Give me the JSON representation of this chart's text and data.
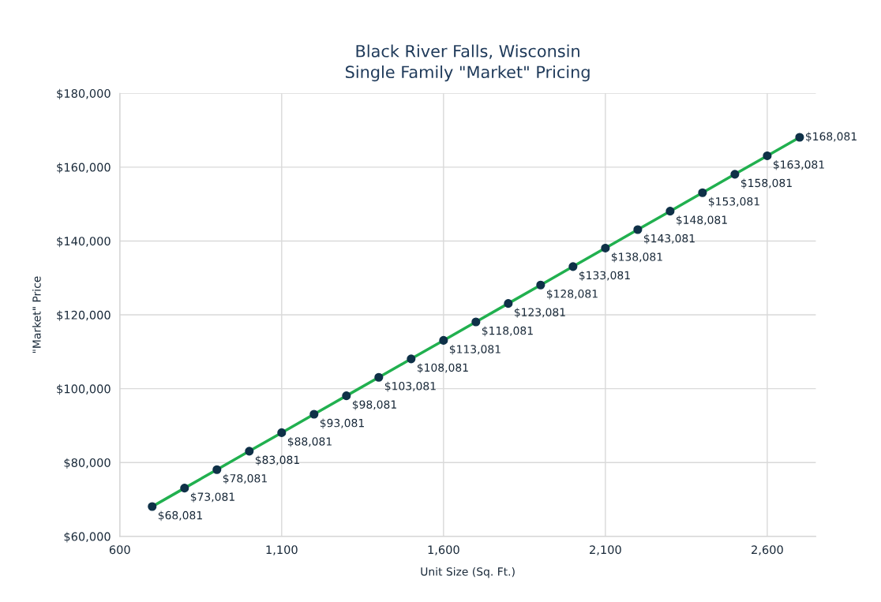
{
  "chart_data": {
    "type": "line",
    "title": "Black River Falls, Wisconsin\nSingle Family \"Market\" Pricing",
    "xlabel": "Unit Size (Sq. Ft.)",
    "ylabel": "\"Market\" Price",
    "x": [
      700,
      800,
      900,
      1000,
      1100,
      1200,
      1300,
      1400,
      1500,
      1600,
      1700,
      1800,
      1900,
      2000,
      2100,
      2200,
      2300,
      2400,
      2500,
      2600,
      2700
    ],
    "series": [
      {
        "color": "#21b04f",
        "values": [
          68081,
          73081,
          78081,
          83081,
          88081,
          93081,
          98081,
          103081,
          108081,
          113081,
          118081,
          123081,
          128081,
          133081,
          138081,
          143081,
          148081,
          153081,
          158081,
          163081,
          168081
        ],
        "value_labels": [
          "$68,081",
          "$73,081",
          "$78,081",
          "$83,081",
          "$88,081",
          "$93,081",
          "$98,081",
          "$103,081",
          "$108,081",
          "$113,081",
          "$118,081",
          "$123,081",
          "$128,081",
          "$133,081",
          "$138,081",
          "$143,081",
          "$148,081",
          "$153,081",
          "$158,081",
          "$163,081",
          "$168,081"
        ]
      }
    ],
    "xlim": [
      600,
      2750
    ],
    "xticks": [
      600,
      {
        "value": 1100,
        "label": "1,100"
      },
      {
        "value": 1600,
        "label": "1,600"
      },
      {
        "value": 2100,
        "label": "2,100"
      },
      {
        "value": 2600,
        "label": "2,600"
      }
    ],
    "ylim": [
      60000,
      180000
    ],
    "yticks": [
      {
        "value": 60000,
        "label": "$60,000"
      },
      {
        "value": 80000,
        "label": "$80,000"
      },
      {
        "value": 100000,
        "label": "$100,000"
      },
      {
        "value": 120000,
        "label": "$120,000"
      },
      {
        "value": 140000,
        "label": "$140,000"
      },
      {
        "value": 160000,
        "label": "$160,000"
      },
      {
        "value": 180000,
        "label": "$180,000"
      }
    ],
    "grid": true,
    "marker": "circle",
    "line_style": "solid",
    "legend": false
  }
}
